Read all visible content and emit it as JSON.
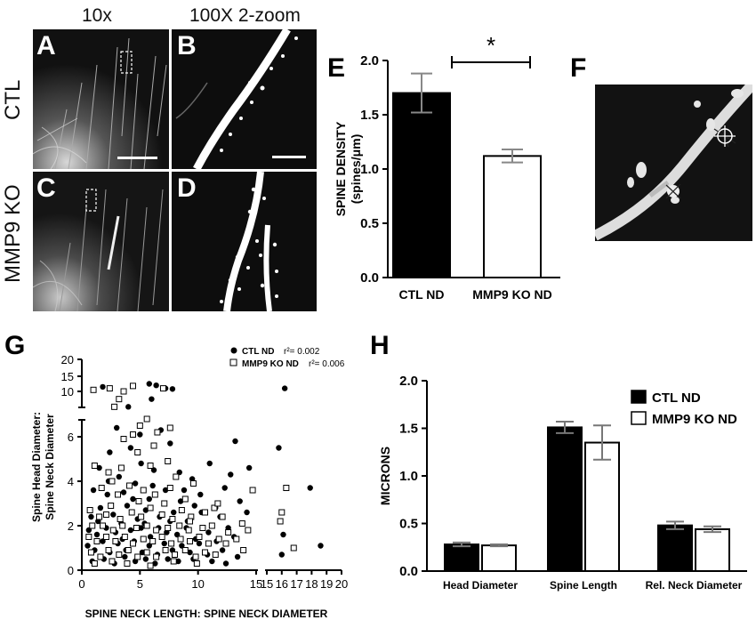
{
  "figure": {
    "column_headers": [
      "10x",
      "100X 2-zoom"
    ],
    "row_headers": [
      "CTL",
      "MMP9 KO"
    ],
    "panel_letters": {
      "A": "A",
      "B": "B",
      "C": "C",
      "D": "D",
      "E": "E",
      "F": "F",
      "G": "G",
      "H": "H"
    }
  },
  "chart_data": [
    {
      "id": "E",
      "type": "bar",
      "categories": [
        "CTL ND",
        "MMP9 KO ND"
      ],
      "values": [
        1.7,
        1.12
      ],
      "errors": [
        0.18,
        0.06
      ],
      "ylabel": "SPINE DENSITY (spines/μm)",
      "ylabel_lines": [
        "SPINE DENSITY",
        "(spines/μm)"
      ],
      "ylim": [
        0.0,
        2.0
      ],
      "yticks": [
        "0.0",
        "0.5",
        "1.0",
        "1.5",
        "2.0"
      ],
      "significance": "*",
      "bar_colors": [
        "#000000",
        "#ffffff"
      ]
    },
    {
      "id": "G",
      "type": "scatter",
      "xlabel": "SPINE NECK LENGTH: SPINE NECK DIAMETER",
      "ylabel": "Spine Head Diameter: Spine Neck Diameter",
      "ylabel_lines": [
        "Spine Head Diameter:",
        "Spine Neck Diameter"
      ],
      "xticks_left": [
        "0",
        "5",
        "10",
        "15"
      ],
      "xticks_right": [
        "15",
        "16",
        "17",
        "18",
        "19",
        "20"
      ],
      "yticks_low": [
        "0",
        "2",
        "4",
        "6"
      ],
      "yticks_high": [
        "10",
        "15",
        "20"
      ],
      "legend": [
        {
          "name": "CTL ND",
          "marker": "filled-circle",
          "r2_label": "r²= 0.002"
        },
        {
          "name": "MMP9 KO ND",
          "marker": "open-square",
          "r2_label": "r²= 0.006"
        }
      ],
      "series": [
        {
          "name": "CTL ND",
          "points": [
            [
              1.8,
              11.5
            ],
            [
              5.8,
              12.5
            ],
            [
              6.4,
              12
            ],
            [
              7.2,
              11
            ],
            [
              7.8,
              10.8
            ],
            [
              4,
              8
            ],
            [
              6,
              9
            ],
            [
              16.2,
              11
            ],
            [
              3,
              6.4
            ],
            [
              5,
              6.1
            ],
            [
              6.8,
              6.3
            ],
            [
              7.6,
              5.7
            ],
            [
              2.4,
              5.3
            ],
            [
              4.2,
              5.5
            ],
            [
              13.2,
              5.8
            ],
            [
              14.4,
              4.6
            ],
            [
              15.8,
              5.5
            ],
            [
              1.5,
              4.6
            ],
            [
              3.2,
              4.2
            ],
            [
              5.1,
              4.8
            ],
            [
              6.2,
              4.5
            ],
            [
              8.4,
              4.4
            ],
            [
              9.5,
              4.1
            ],
            [
              11,
              4.8
            ],
            [
              12.8,
              4.3
            ],
            [
              1,
              3.6
            ],
            [
              2.2,
              3.4
            ],
            [
              3.6,
              3.5
            ],
            [
              4.6,
              3.9
            ],
            [
              5.8,
              3.2
            ],
            [
              7.2,
              3.6
            ],
            [
              8.5,
              3.1
            ],
            [
              10.2,
              3.4
            ],
            [
              11.5,
              2.8
            ],
            [
              13.6,
              3.1
            ],
            [
              17.9,
              3.7
            ],
            [
              0.8,
              2.4
            ],
            [
              1.6,
              2.8
            ],
            [
              2.7,
              2.5
            ],
            [
              3.9,
              2.9
            ],
            [
              4.8,
              2.3
            ],
            [
              5.5,
              2.7
            ],
            [
              6.7,
              2.4
            ],
            [
              7.9,
              2.6
            ],
            [
              9.1,
              2.2
            ],
            [
              10.3,
              2.6
            ],
            [
              11.9,
              2.4
            ],
            [
              12.6,
              1.9
            ],
            [
              14.2,
              2.6
            ],
            [
              0.6,
              1.8
            ],
            [
              1.3,
              1.6
            ],
            [
              2.1,
              1.9
            ],
            [
              2.9,
              1.7
            ],
            [
              3.4,
              2.1
            ],
            [
              4.2,
              1.8
            ],
            [
              5.1,
              1.9
            ],
            [
              5.9,
              1.5
            ],
            [
              6.6,
              1.9
            ],
            [
              7.3,
              1.7
            ],
            [
              8.2,
              1.6
            ],
            [
              9,
              1.9
            ],
            [
              9.8,
              1.4
            ],
            [
              10.9,
              1.7
            ],
            [
              11.6,
              1.3
            ],
            [
              13.1,
              1.5
            ],
            [
              16.1,
              1.6
            ],
            [
              18.6,
              1.1
            ],
            [
              0.5,
              1.1
            ],
            [
              1.1,
              0.9
            ],
            [
              1.8,
              1.3
            ],
            [
              2.4,
              0.8
            ],
            [
              3.1,
              1.2
            ],
            [
              3.8,
              0.9
            ],
            [
              4.5,
              1.3
            ],
            [
              5.2,
              0.8
            ],
            [
              5.8,
              1.1
            ],
            [
              6.5,
              0.7
            ],
            [
              7.1,
              1.2
            ],
            [
              7.8,
              0.9
            ],
            [
              8.6,
              1.1
            ],
            [
              9.3,
              0.8
            ],
            [
              10.1,
              1.2
            ],
            [
              10.8,
              0.7
            ],
            [
              12.1,
              0.9
            ],
            [
              13.4,
              0.6
            ],
            [
              16,
              0.7
            ],
            [
              0.9,
              0.4
            ],
            [
              1.9,
              0.5
            ],
            [
              2.8,
              0.3
            ],
            [
              3.7,
              0.6
            ],
            [
              4.6,
              0.4
            ],
            [
              5.5,
              0.5
            ],
            [
              6.3,
              0.3
            ],
            [
              7.4,
              0.5
            ],
            [
              8.3,
              0.4
            ],
            [
              9.6,
              0.5
            ],
            [
              11.2,
              0.4
            ],
            [
              12.4,
              0.3
            ],
            [
              2.3,
              4
            ],
            [
              4.4,
              3.2
            ],
            [
              6.1,
              3.8
            ],
            [
              8.8,
              3.6
            ],
            [
              3.5,
              1.4
            ],
            [
              5.4,
              2.1
            ],
            [
              7.6,
              2.2
            ],
            [
              9.7,
              2.9
            ],
            [
              1.4,
              2.2
            ],
            [
              12.3,
              3.7
            ]
          ]
        },
        {
          "name": "MMP9 KO ND",
          "points": [
            [
              1,
              10.5
            ],
            [
              2.4,
              11
            ],
            [
              3.6,
              10
            ],
            [
              3.2,
              9
            ],
            [
              4.4,
              11.8
            ],
            [
              7,
              11
            ],
            [
              2.8,
              8
            ],
            [
              4.4,
              6.1
            ],
            [
              5,
              6.5
            ],
            [
              5.6,
              6.8
            ],
            [
              6.5,
              6.2
            ],
            [
              3.6,
              5.9
            ],
            [
              7.6,
              6.4
            ],
            [
              6.2,
              5.6
            ],
            [
              4.8,
              5.3
            ],
            [
              1.1,
              4.7
            ],
            [
              2.3,
              4.4
            ],
            [
              3.4,
              4.6
            ],
            [
              5.9,
              4.7
            ],
            [
              7.4,
              4.9
            ],
            [
              2.6,
              4
            ],
            [
              8.1,
              4.2
            ],
            [
              1.7,
              3.7
            ],
            [
              3.1,
              3.4
            ],
            [
              4.1,
              3.8
            ],
            [
              5.3,
              3.6
            ],
            [
              6.3,
              3.4
            ],
            [
              7.6,
              3.7
            ],
            [
              8.9,
              3.2
            ],
            [
              9.6,
              3.9
            ],
            [
              11.4,
              2.8
            ],
            [
              14.7,
              3.6
            ],
            [
              16.3,
              3.7
            ],
            [
              0.7,
              2.7
            ],
            [
              1.5,
              2.4
            ],
            [
              2.5,
              2.9
            ],
            [
              3.3,
              2.3
            ],
            [
              4.3,
              2.6
            ],
            [
              5.1,
              2.4
            ],
            [
              5.9,
              2.8
            ],
            [
              6.9,
              2.5
            ],
            [
              7.8,
              2.3
            ],
            [
              8.6,
              2.7
            ],
            [
              9.4,
              2.4
            ],
            [
              10.6,
              2.6
            ],
            [
              12.1,
              2.4
            ],
            [
              13.8,
              2.1
            ],
            [
              16,
              2.6
            ],
            [
              0.9,
              2
            ],
            [
              1.8,
              2
            ],
            [
              2.7,
              1.8
            ],
            [
              3.5,
              2
            ],
            [
              4.7,
              1.9
            ],
            [
              5.6,
              2
            ],
            [
              6.4,
              1.8
            ],
            [
              7.4,
              1.9
            ],
            [
              8.4,
              2
            ],
            [
              9.2,
              1.8
            ],
            [
              10.4,
              1.9
            ],
            [
              11.2,
              2
            ],
            [
              12.6,
              1.7
            ],
            [
              14.3,
              1.8
            ],
            [
              15.9,
              2.2
            ],
            [
              0.6,
              1.5
            ],
            [
              1.3,
              1.3
            ],
            [
              2.1,
              1.5
            ],
            [
              2.9,
              1.3
            ],
            [
              3.7,
              1.5
            ],
            [
              4.4,
              1.2
            ],
            [
              5.3,
              1.4
            ],
            [
              6.1,
              1.3
            ],
            [
              6.9,
              1.5
            ],
            [
              7.7,
              1.2
            ],
            [
              8.5,
              1.4
            ],
            [
              9.3,
              1.3
            ],
            [
              10.1,
              1.5
            ],
            [
              10.9,
              1.2
            ],
            [
              11.8,
              1.4
            ],
            [
              12.4,
              1.2
            ],
            [
              13.3,
              1.4
            ],
            [
              0.8,
              0.8
            ],
            [
              1.6,
              0.6
            ],
            [
              2.3,
              0.9
            ],
            [
              3.2,
              0.7
            ],
            [
              4,
              0.9
            ],
            [
              4.8,
              0.6
            ],
            [
              5.6,
              0.8
            ],
            [
              6.4,
              0.6
            ],
            [
              7.2,
              0.9
            ],
            [
              8,
              0.7
            ],
            [
              8.9,
              0.9
            ],
            [
              9.8,
              0.6
            ],
            [
              10.6,
              0.8
            ],
            [
              11.5,
              0.7
            ],
            [
              13.9,
              0.9
            ],
            [
              16.8,
              1
            ],
            [
              1.1,
              0.3
            ],
            [
              2.6,
              0.4
            ],
            [
              3.9,
              0.3
            ],
            [
              5.9,
              0.2
            ],
            [
              7.9,
              0.4
            ],
            [
              9.9,
              0.3
            ],
            [
              2.1,
              2.5
            ],
            [
              4.9,
              3.1
            ],
            [
              7.1,
              3
            ],
            [
              9.3,
              2.2
            ],
            [
              11.7,
              3
            ]
          ]
        }
      ]
    },
    {
      "id": "H",
      "type": "bar",
      "categories": [
        "Head Diameter",
        "Spine Length",
        "Rel. Neck Diameter"
      ],
      "ylabel": "MICRONS",
      "ylim": [
        0.0,
        2.0
      ],
      "yticks": [
        "0.0",
        "0.5",
        "1.0",
        "1.5",
        "2.0"
      ],
      "legend_placement": "top-right",
      "series": [
        {
          "name": "CTL ND",
          "values": [
            0.28,
            1.51,
            0.48
          ],
          "errors": [
            0.02,
            0.06,
            0.04
          ],
          "color": "#000000"
        },
        {
          "name": "MMP9 KO ND",
          "values": [
            0.27,
            1.35,
            0.44
          ],
          "errors": [
            0.01,
            0.18,
            0.03
          ],
          "color": "#ffffff"
        }
      ]
    }
  ]
}
